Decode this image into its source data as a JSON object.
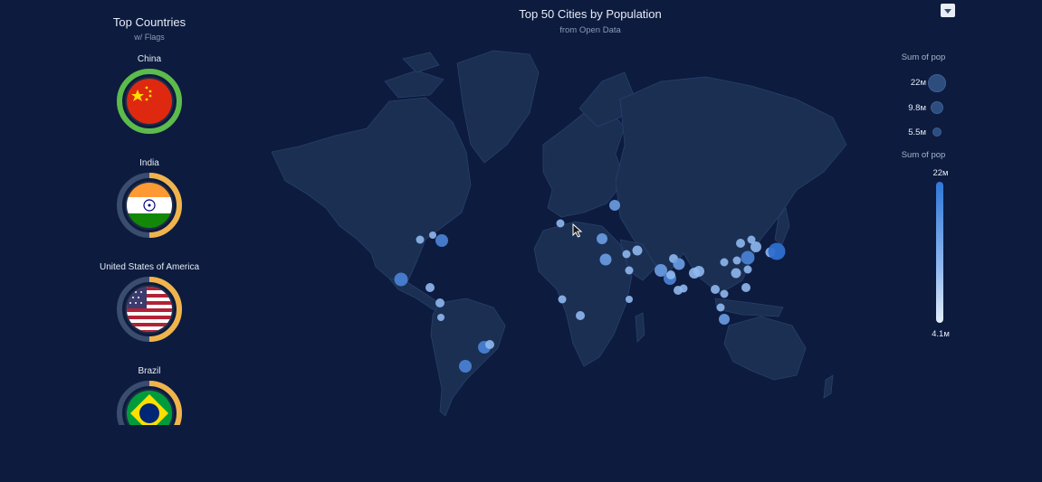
{
  "left_panel": {
    "title": "Top Countries",
    "subtitle": "w/ Flags",
    "countries": [
      {
        "name": "China",
        "flag": "china-flag",
        "ring_color": "#5cbb4a",
        "ring_fill": 1.0
      },
      {
        "name": "India",
        "flag": "india-flag",
        "ring_color": "#f0b44c",
        "ring_fill": 0.5
      },
      {
        "name": "United States of America",
        "flag": "usa-flag",
        "ring_color": "#f0b44c",
        "ring_fill": 0.5
      },
      {
        "name": "Brazil",
        "flag": "brazil-flag",
        "ring_color": "#f0b44c",
        "ring_fill": 0.5
      }
    ]
  },
  "map": {
    "title": "Top 50 Cities by Population",
    "subtitle": "from Open Data"
  },
  "legend": {
    "size_title": "Sum of pop",
    "size_items": [
      "22м",
      "9.8м",
      "5.5м"
    ],
    "color_title": "Sum of pop",
    "color_max": "22м",
    "color_min": "4.1м"
  },
  "colors": {
    "background": "#0d1b3e",
    "land": "#1b2f53",
    "city": "#7eb0ea",
    "city_large": "#2e6fd0"
  },
  "icons": {
    "menu": "dropdown-arrow-icon",
    "cursor": "mouse-pointer-icon"
  }
}
